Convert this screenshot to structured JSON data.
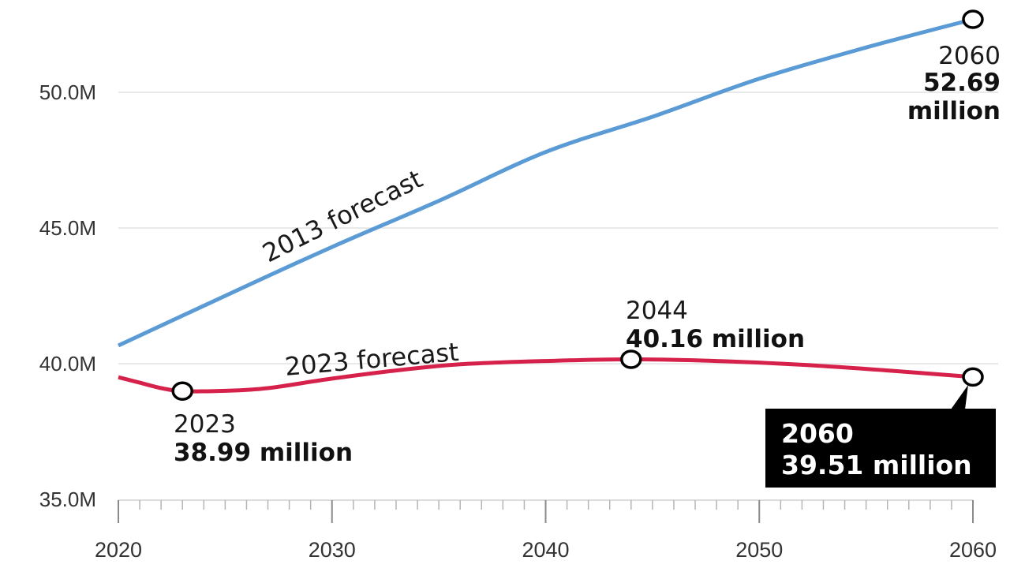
{
  "chart_data": {
    "type": "line",
    "title": "",
    "xlabel": "",
    "ylabel": "",
    "xlim": [
      2020,
      2060
    ],
    "ylim": [
      35.0,
      52.8
    ],
    "grid": true,
    "x_ticks": [
      {
        "value": 2020,
        "label": "2020"
      },
      {
        "value": 2030,
        "label": "2030"
      },
      {
        "value": 2040,
        "label": "2040"
      },
      {
        "value": 2050,
        "label": "2050"
      },
      {
        "value": 2060,
        "label": "2060"
      }
    ],
    "y_ticks": [
      {
        "value": 35.0,
        "label": "35.0M"
      },
      {
        "value": 40.0,
        "label": "40.0M"
      },
      {
        "value": 45.0,
        "label": "45.0M"
      },
      {
        "value": 50.0,
        "label": "50.0M"
      }
    ],
    "series": [
      {
        "name": "2013 forecast",
        "color": "#5b9bd5",
        "x": [
          2020,
          2025,
          2030,
          2035,
          2040,
          2045,
          2050,
          2055,
          2060
        ],
        "values": [
          40.67,
          42.5,
          44.3,
          46.0,
          47.8,
          49.1,
          50.5,
          51.65,
          52.69
        ]
      },
      {
        "name": "2023 forecast",
        "color": "#d6224b",
        "x": [
          2020,
          2021,
          2022,
          2023,
          2025,
          2027,
          2030,
          2033,
          2036,
          2040,
          2044,
          2048,
          2052,
          2056,
          2060
        ],
        "values": [
          39.5,
          39.3,
          39.1,
          38.99,
          39.0,
          39.1,
          39.45,
          39.75,
          39.98,
          40.1,
          40.16,
          40.1,
          39.96,
          39.75,
          39.51
        ]
      }
    ],
    "annotations": [
      {
        "series": "2013 forecast",
        "x": 2060,
        "y": 52.69,
        "year": "2060",
        "value_line1": "52.69",
        "value_line2": "million",
        "style": "plain"
      },
      {
        "series": "2023 forecast",
        "x": 2023,
        "y": 38.99,
        "year": "2023",
        "value": "38.99 million",
        "style": "plain"
      },
      {
        "series": "2023 forecast",
        "x": 2044,
        "y": 40.16,
        "year": "2044",
        "value": "40.16 million",
        "style": "plain"
      },
      {
        "series": "2023 forecast",
        "x": 2060,
        "y": 39.51,
        "year": "2060",
        "value": "39.51 million",
        "style": "black-box"
      }
    ],
    "legend": "inline-labels"
  }
}
